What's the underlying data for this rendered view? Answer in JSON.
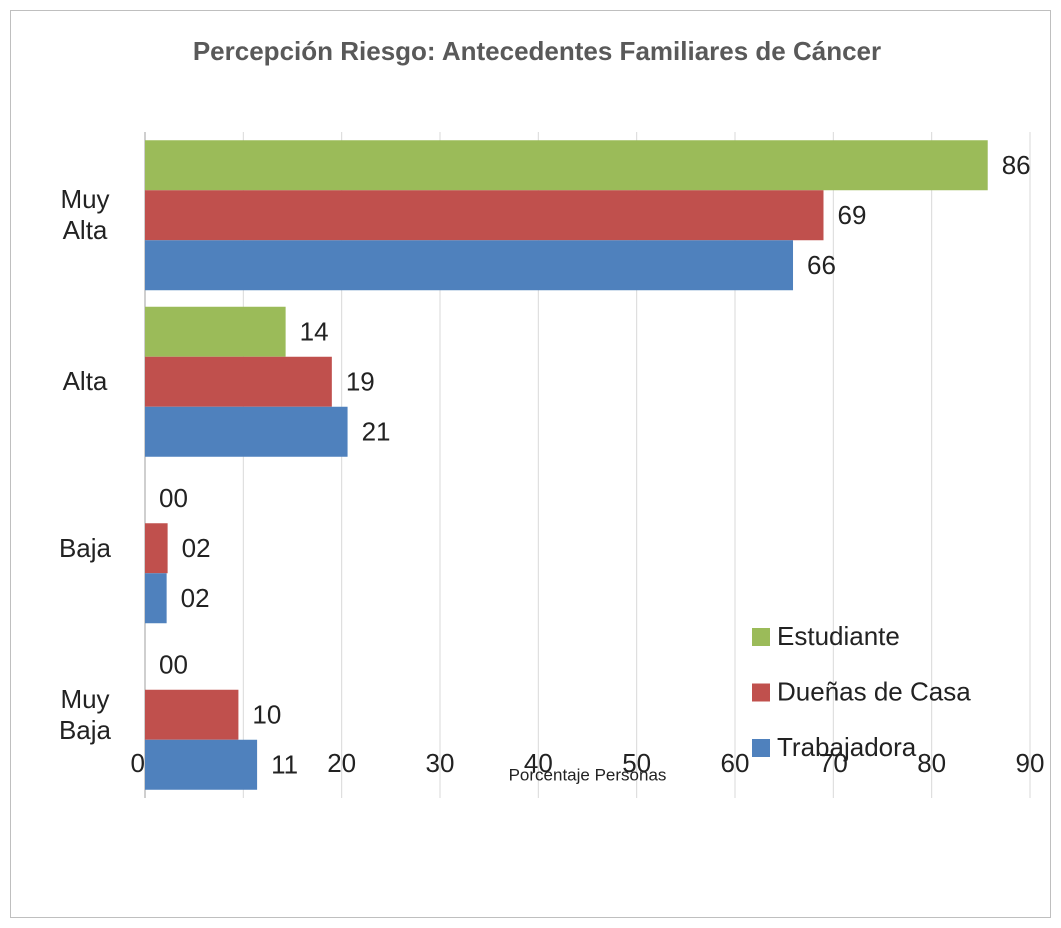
{
  "chart_data": {
    "type": "bar",
    "orientation": "horizontal",
    "title": "Percepción Riesgo: Antecedentes Familiares de Cáncer",
    "x_label": "Porcentaje Personas",
    "categories": [
      "Muy Alta",
      "Alta",
      "Baja",
      "Muy Baja"
    ],
    "series": [
      {
        "name": "Estudiante",
        "color": "#9bbb59",
        "values": [
          85.7,
          14.3,
          0,
          0
        ],
        "value_labels": [
          "86",
          "14",
          "00",
          "00"
        ]
      },
      {
        "name": "Dueñas de Casa",
        "color": "#c0504d",
        "values": [
          69.0,
          19.0,
          2.3,
          9.5
        ],
        "value_labels": [
          "69",
          "19",
          "02",
          "10"
        ]
      },
      {
        "name": "Trabajadora",
        "color": "#4f81bd",
        "values": [
          65.9,
          20.6,
          2.2,
          11.4
        ],
        "value_labels": [
          "66",
          "21",
          "02",
          "11"
        ]
      }
    ],
    "xlim": [
      0,
      90
    ],
    "xticks": [
      {
        "value": 0,
        "label": "00"
      },
      10,
      20,
      30,
      40,
      50,
      60,
      70,
      80,
      90
    ],
    "grid": true,
    "legend": "lower right"
  }
}
